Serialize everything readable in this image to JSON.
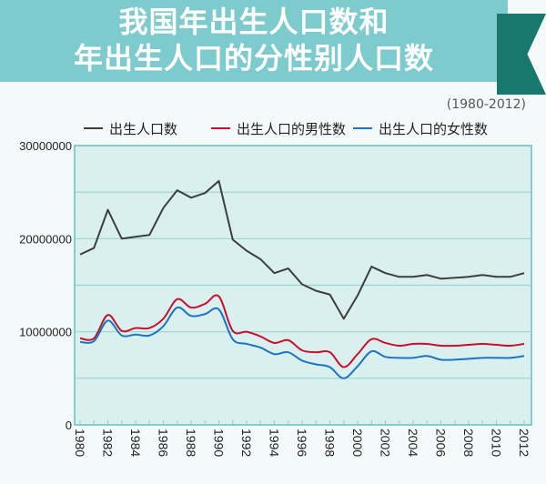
{
  "chart_data": {
    "type": "line",
    "title_line1": "我国年出生人口数和",
    "title_line2": "年出生人口的分性别人口数",
    "subtitle": "(1980-2012)",
    "x": [
      1980,
      1981,
      1982,
      1983,
      1984,
      1985,
      1986,
      1987,
      1988,
      1989,
      1990,
      1991,
      1992,
      1993,
      1994,
      1995,
      1996,
      1997,
      1998,
      1999,
      2000,
      2001,
      2002,
      2003,
      2004,
      2005,
      2006,
      2007,
      2008,
      2009,
      2010,
      2011,
      2012
    ],
    "xticks": [
      "1980",
      "1982",
      "1984",
      "1986",
      "1988",
      "1990",
      "1992",
      "1994",
      "1996",
      "1998",
      "2000",
      "2002",
      "2004",
      "2006",
      "2008",
      "2010",
      "2012"
    ],
    "yticks": [
      "0",
      "10000000",
      "20000000",
      "30000000"
    ],
    "ylim": [
      0,
      30000000
    ],
    "grid": true,
    "legend_position": "top",
    "series": [
      {
        "name": "出生人口数",
        "color": "#3d3d3d",
        "values": [
          18300000,
          19000000,
          23100000,
          20000000,
          20200000,
          20400000,
          23300000,
          25200000,
          24400000,
          24900000,
          26200000,
          19900000,
          18700000,
          17800000,
          16300000,
          16800000,
          15100000,
          14400000,
          14000000,
          11400000,
          13900000,
          17000000,
          16300000,
          15900000,
          15900000,
          16100000,
          15700000,
          15800000,
          15900000,
          16100000,
          15900000,
          15900000,
          16300000
        ]
      },
      {
        "name": "出生人口的男性数",
        "color": "#c8102e",
        "values": [
          9300000,
          9300000,
          11800000,
          10100000,
          10400000,
          10400000,
          11400000,
          13500000,
          12600000,
          13000000,
          13800000,
          10100000,
          10000000,
          9500000,
          8800000,
          9100000,
          8000000,
          7800000,
          7800000,
          6200000,
          7600000,
          9200000,
          8800000,
          8500000,
          8700000,
          8700000,
          8500000,
          8500000,
          8600000,
          8700000,
          8600000,
          8500000,
          8700000
        ]
      },
      {
        "name": "出生人口的女性数",
        "color": "#1a75c2",
        "values": [
          8900000,
          9000000,
          11200000,
          9600000,
          9700000,
          9600000,
          10600000,
          12600000,
          11700000,
          11900000,
          12400000,
          9200000,
          8700000,
          8300000,
          7600000,
          7800000,
          6900000,
          6500000,
          6200000,
          5000000,
          6300000,
          7900000,
          7300000,
          7200000,
          7200000,
          7400000,
          7000000,
          7000000,
          7100000,
          7200000,
          7200000,
          7200000,
          7400000
        ]
      }
    ]
  }
}
